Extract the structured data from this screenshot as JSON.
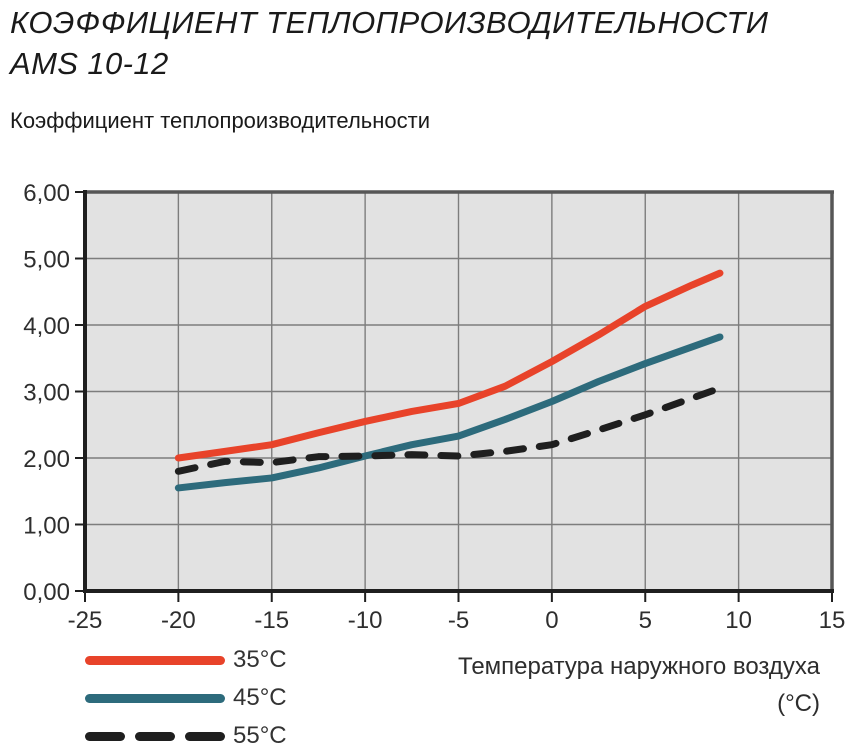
{
  "page": {
    "title_line1": "КОЭФФИЦИЕНТ ТЕПЛОПРОИЗВОДИТЕЛЬНОСТИ",
    "title_line2": "AMS 10-12",
    "subtitle": "Коэффициент теплопроизводительности"
  },
  "chart_data": {
    "type": "line",
    "title": "Коэффициент теплопроизводительности",
    "xlabel_line1": "Температура наружного воздуха",
    "xlabel_line2": "(°C)",
    "xlim": [
      -25,
      15
    ],
    "ylim": [
      0,
      6
    ],
    "x_ticks": [
      -25,
      -20,
      -15,
      -10,
      -5,
      0,
      5,
      10,
      15
    ],
    "x_tick_labels": [
      "-25",
      "-20",
      "-15",
      "-10",
      "-5",
      "0",
      "5",
      "10",
      "15"
    ],
    "y_ticks": [
      0,
      1,
      2,
      3,
      4,
      5,
      6
    ],
    "y_tick_labels": [
      "0,00",
      "1,00",
      "2,00",
      "3,00",
      "4,00",
      "5,00",
      "6,00"
    ],
    "grid": true,
    "legend_position": "bottom-left",
    "plot_background": "#e2e2e2",
    "grid_color": "#7d7d7d",
    "frame_color": "#565656",
    "axis_color": "#1f1f1f",
    "x": [
      -20,
      -17.5,
      -15,
      -12.5,
      -10,
      -7.5,
      -5,
      -2.5,
      0,
      2.5,
      5,
      7.5,
      9
    ],
    "series": [
      {
        "name": "35°C",
        "color": "#e8432a",
        "style": "solid",
        "values": [
          2.0,
          2.1,
          2.2,
          2.38,
          2.55,
          2.7,
          2.82,
          3.08,
          3.45,
          3.85,
          4.28,
          4.6,
          4.78
        ]
      },
      {
        "name": "45°C",
        "color": "#2d6b7c",
        "style": "solid",
        "values": [
          1.55,
          1.63,
          1.7,
          1.85,
          2.03,
          2.2,
          2.33,
          2.58,
          2.85,
          3.15,
          3.42,
          3.67,
          3.82
        ]
      },
      {
        "name": "55°C",
        "color": "#1f1f1f",
        "style": "dashed",
        "values": [
          1.8,
          1.95,
          1.93,
          2.02,
          2.03,
          2.05,
          2.03,
          2.1,
          2.2,
          2.42,
          2.65,
          2.9,
          3.05
        ]
      }
    ]
  }
}
